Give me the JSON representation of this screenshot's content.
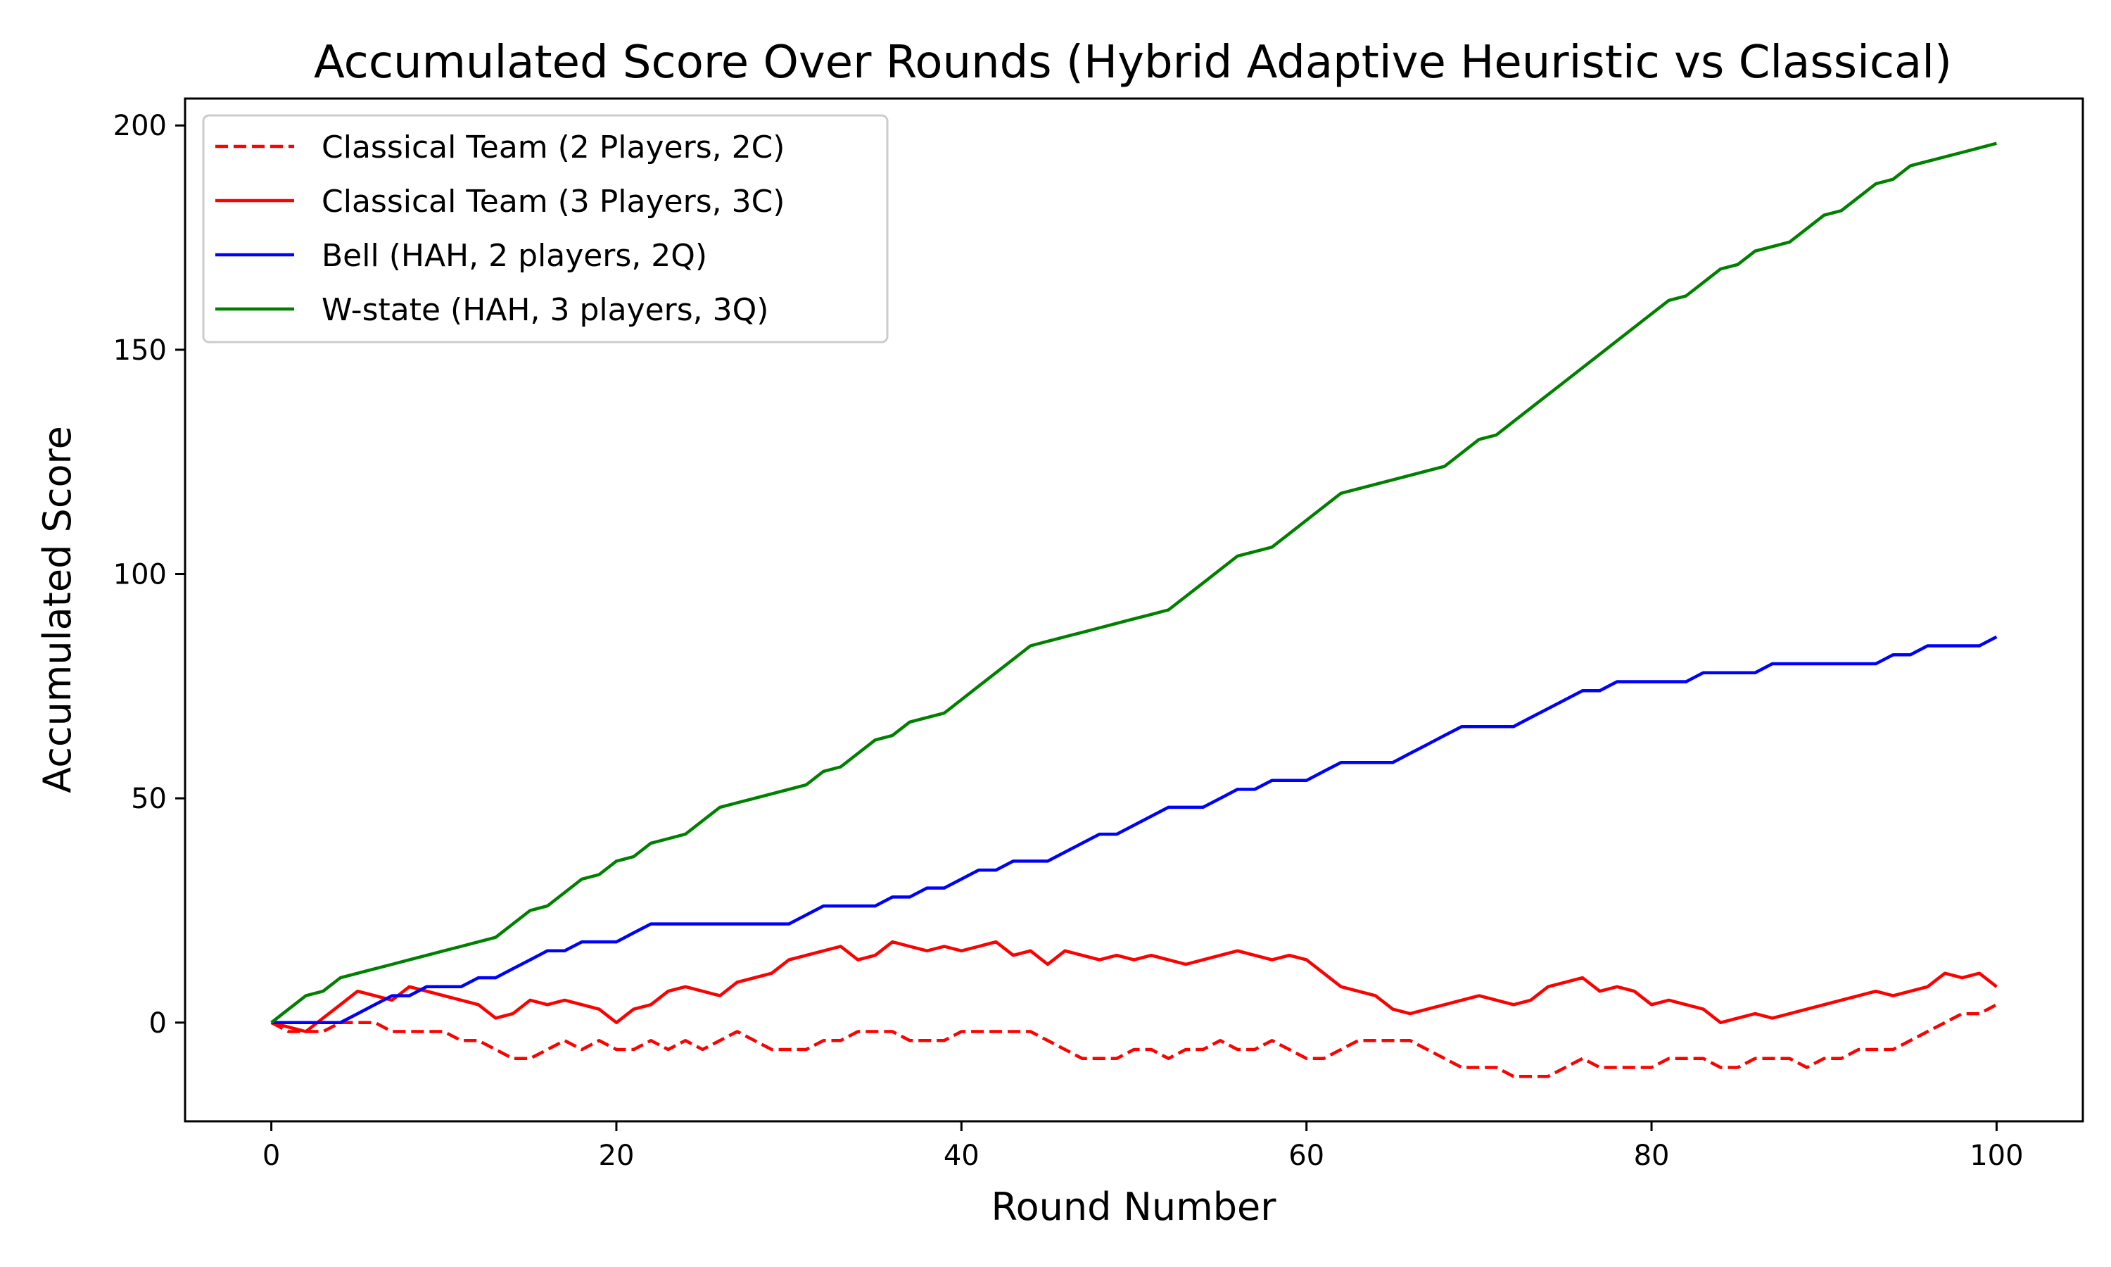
{
  "chart_data": {
    "type": "line",
    "title": "Accumulated Score Over Rounds (Hybrid Adaptive Heuristic vs Classical)",
    "xlabel": "Round Number",
    "ylabel": "Accumulated Score",
    "xlim": [
      -5,
      105
    ],
    "ylim": [
      -22,
      206
    ],
    "xticks": [
      0,
      20,
      40,
      60,
      80,
      100
    ],
    "yticks": [
      0,
      50,
      100,
      150,
      200
    ],
    "grid": false,
    "legend_position": "top-left",
    "series": [
      {
        "name": "Classical Team (2 Players, 2C)",
        "color": "#ff0000",
        "dash": "dashed",
        "x": [
          0,
          1,
          2,
          3,
          4,
          5,
          6,
          7,
          8,
          9,
          10,
          11,
          12,
          13,
          14,
          15,
          16,
          17,
          18,
          19,
          20,
          21,
          22,
          23,
          24,
          25,
          26,
          27,
          28,
          29,
          30,
          31,
          32,
          33,
          34,
          35,
          36,
          37,
          38,
          39,
          40,
          41,
          42,
          43,
          44,
          45,
          46,
          47,
          48,
          49,
          50,
          51,
          52,
          53,
          54,
          55,
          56,
          57,
          58,
          59,
          60,
          61,
          62,
          63,
          64,
          65,
          66,
          67,
          68,
          69,
          70,
          71,
          72,
          73,
          74,
          75,
          76,
          77,
          78,
          79,
          80,
          81,
          82,
          83,
          84,
          85,
          86,
          87,
          88,
          89,
          90,
          91,
          92,
          93,
          94,
          95,
          96,
          97,
          98,
          99,
          100
        ],
        "y": [
          0,
          -2,
          -2,
          -2,
          0,
          0,
          0,
          -2,
          -2,
          -2,
          -2,
          -4,
          -4,
          -6,
          -8,
          -8,
          -6,
          -4,
          -6,
          -4,
          -6,
          -6,
          -4,
          -6,
          -4,
          -6,
          -4,
          -2,
          -4,
          -6,
          -6,
          -6,
          -4,
          -4,
          -2,
          -2,
          -2,
          -4,
          -4,
          -4,
          -2,
          -2,
          -2,
          -2,
          -2,
          -4,
          -6,
          -8,
          -8,
          -8,
          -6,
          -6,
          -8,
          -6,
          -6,
          -4,
          -6,
          -6,
          -4,
          -6,
          -8,
          -8,
          -6,
          -4,
          -4,
          -4,
          -4,
          -6,
          -8,
          -10,
          -10,
          -10,
          -12,
          -12,
          -12,
          -10,
          -8,
          -10,
          -10,
          -10,
          -10,
          -8,
          -8,
          -8,
          -10,
          -10,
          -8,
          -8,
          -8,
          -10,
          -8,
          -8,
          -6,
          -6,
          -6,
          -4,
          -2,
          0,
          2,
          2,
          4
        ]
      },
      {
        "name": "Classical Team (3 Players, 3C)",
        "color": "#ff0000",
        "dash": "solid",
        "x": [
          0,
          1,
          2,
          3,
          4,
          5,
          6,
          7,
          8,
          9,
          10,
          11,
          12,
          13,
          14,
          15,
          16,
          17,
          18,
          19,
          20,
          21,
          22,
          23,
          24,
          25,
          26,
          27,
          28,
          29,
          30,
          31,
          32,
          33,
          34,
          35,
          36,
          37,
          38,
          39,
          40,
          41,
          42,
          43,
          44,
          45,
          46,
          47,
          48,
          49,
          50,
          51,
          52,
          53,
          54,
          55,
          56,
          57,
          58,
          59,
          60,
          61,
          62,
          63,
          64,
          65,
          66,
          67,
          68,
          69,
          70,
          71,
          72,
          73,
          74,
          75,
          76,
          77,
          78,
          79,
          80,
          81,
          82,
          83,
          84,
          85,
          86,
          87,
          88,
          89,
          90,
          91,
          92,
          93,
          94,
          95,
          96,
          97,
          98,
          99,
          100
        ],
        "y": [
          0,
          -1,
          -2,
          1,
          4,
          7,
          6,
          5,
          8,
          7,
          6,
          5,
          4,
          1,
          2,
          5,
          4,
          5,
          4,
          3,
          0,
          3,
          4,
          7,
          8,
          7,
          6,
          9,
          10,
          11,
          14,
          15,
          16,
          17,
          14,
          15,
          18,
          17,
          16,
          17,
          16,
          17,
          18,
          15,
          16,
          13,
          16,
          15,
          14,
          15,
          14,
          15,
          14,
          13,
          14,
          15,
          16,
          15,
          14,
          15,
          14,
          11,
          8,
          7,
          6,
          3,
          2,
          3,
          4,
          5,
          6,
          5,
          4,
          5,
          8,
          9,
          10,
          7,
          8,
          7,
          4,
          5,
          4,
          3,
          0,
          1,
          2,
          1,
          2,
          3,
          4,
          5,
          6,
          7,
          6,
          7,
          8,
          11,
          10,
          11,
          8
        ]
      },
      {
        "name": "Bell (HAH, 2 players, 2Q)",
        "color": "#0000ff",
        "dash": "solid",
        "x": [
          0,
          1,
          2,
          3,
          4,
          5,
          6,
          7,
          8,
          9,
          10,
          11,
          12,
          13,
          14,
          15,
          16,
          17,
          18,
          19,
          20,
          21,
          22,
          23,
          24,
          25,
          26,
          27,
          28,
          29,
          30,
          31,
          32,
          33,
          34,
          35,
          36,
          37,
          38,
          39,
          40,
          41,
          42,
          43,
          44,
          45,
          46,
          47,
          48,
          49,
          50,
          51,
          52,
          53,
          54,
          55,
          56,
          57,
          58,
          59,
          60,
          61,
          62,
          63,
          64,
          65,
          66,
          67,
          68,
          69,
          70,
          71,
          72,
          73,
          74,
          75,
          76,
          77,
          78,
          79,
          80,
          81,
          82,
          83,
          84,
          85,
          86,
          87,
          88,
          89,
          90,
          91,
          92,
          93,
          94,
          95,
          96,
          97,
          98,
          99,
          100
        ],
        "y": [
          0,
          0,
          0,
          0,
          0,
          2,
          4,
          6,
          6,
          8,
          8,
          8,
          10,
          10,
          12,
          14,
          16,
          16,
          18,
          18,
          18,
          20,
          22,
          22,
          22,
          22,
          22,
          22,
          22,
          22,
          22,
          24,
          26,
          26,
          26,
          26,
          28,
          28,
          30,
          30,
          32,
          34,
          34,
          36,
          36,
          36,
          38,
          40,
          42,
          42,
          44,
          46,
          48,
          48,
          48,
          50,
          52,
          52,
          54,
          54,
          54,
          56,
          58,
          58,
          58,
          58,
          60,
          62,
          64,
          66,
          66,
          66,
          66,
          68,
          70,
          72,
          74,
          74,
          76,
          76,
          76,
          76,
          76,
          78,
          78,
          78,
          78,
          80,
          80,
          80,
          80,
          80,
          80,
          80,
          82,
          82,
          84,
          84,
          84,
          84,
          86
        ]
      },
      {
        "name": "W-state (HAH, 3 players, 3Q)",
        "color": "#008000",
        "dash": "solid",
        "x": [
          0,
          1,
          2,
          3,
          4,
          5,
          6,
          7,
          8,
          9,
          10,
          11,
          12,
          13,
          14,
          15,
          16,
          17,
          18,
          19,
          20,
          21,
          22,
          23,
          24,
          25,
          26,
          27,
          28,
          29,
          30,
          31,
          32,
          33,
          34,
          35,
          36,
          37,
          38,
          39,
          40,
          41,
          42,
          43,
          44,
          45,
          46,
          47,
          48,
          49,
          50,
          51,
          52,
          53,
          54,
          55,
          56,
          57,
          58,
          59,
          60,
          61,
          62,
          63,
          64,
          65,
          66,
          67,
          68,
          69,
          70,
          71,
          72,
          73,
          74,
          75,
          76,
          77,
          78,
          79,
          80,
          81,
          82,
          83,
          84,
          85,
          86,
          87,
          88,
          89,
          90,
          91,
          92,
          93,
          94,
          95,
          96,
          97,
          98,
          99,
          100
        ],
        "y": [
          0,
          3,
          6,
          7,
          10,
          11,
          12,
          13,
          14,
          15,
          16,
          17,
          18,
          19,
          22,
          25,
          26,
          29,
          32,
          33,
          36,
          37,
          40,
          41,
          42,
          45,
          48,
          49,
          50,
          51,
          52,
          53,
          56,
          57,
          60,
          63,
          64,
          67,
          68,
          69,
          72,
          75,
          78,
          81,
          84,
          85,
          86,
          87,
          88,
          89,
          90,
          91,
          92,
          95,
          98,
          101,
          104,
          105,
          106,
          109,
          112,
          115,
          118,
          119,
          120,
          121,
          122,
          123,
          124,
          127,
          130,
          131,
          134,
          137,
          140,
          143,
          146,
          149,
          152,
          155,
          158,
          161,
          162,
          165,
          168,
          169,
          172,
          173,
          174,
          177,
          180,
          181,
          184,
          187,
          188,
          191,
          192,
          193,
          194,
          195,
          196
        ]
      }
    ]
  }
}
